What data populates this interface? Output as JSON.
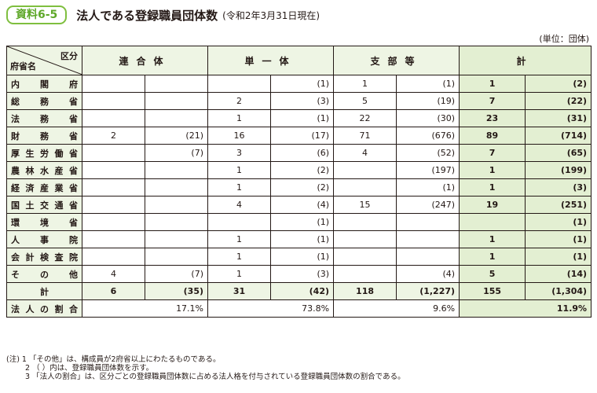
{
  "header": {
    "badge": "資料6-5",
    "title": "法人である登録職員団体数",
    "date": "(令和2年3月31日現在)",
    "unit": "(単位：団体)"
  },
  "table": {
    "corner_top": "区分",
    "corner_bottom": "府省名",
    "columns": [
      "連合体",
      "単一体",
      "支部等",
      "計"
    ],
    "rows": [
      {
        "name": "内閣府",
        "cells": [
          "",
          "",
          "",
          "(1)",
          "1",
          "(1)",
          "1",
          "(2)"
        ]
      },
      {
        "name": "総務省",
        "cells": [
          "",
          "",
          "2",
          "(3)",
          "5",
          "(19)",
          "7",
          "(22)"
        ]
      },
      {
        "name": "法務省",
        "cells": [
          "",
          "",
          "1",
          "(1)",
          "22",
          "(30)",
          "23",
          "(31)"
        ]
      },
      {
        "name": "財務省",
        "cells": [
          "2",
          "(21)",
          "16",
          "(17)",
          "71",
          "(676)",
          "89",
          "(714)"
        ]
      },
      {
        "name": "厚生労働省",
        "cells": [
          "",
          "(7)",
          "3",
          "(6)",
          "4",
          "(52)",
          "7",
          "(65)"
        ]
      },
      {
        "name": "農林水産省",
        "cells": [
          "",
          "",
          "1",
          "(2)",
          "",
          "(197)",
          "1",
          "(199)"
        ]
      },
      {
        "name": "経済産業省",
        "cells": [
          "",
          "",
          "1",
          "(2)",
          "",
          "(1)",
          "1",
          "(3)"
        ]
      },
      {
        "name": "国土交通省",
        "cells": [
          "",
          "",
          "4",
          "(4)",
          "15",
          "(247)",
          "19",
          "(251)"
        ]
      },
      {
        "name": "環境省",
        "cells": [
          "",
          "",
          "",
          "(1)",
          "",
          "",
          "",
          "(1)"
        ]
      },
      {
        "name": "人事院",
        "cells": [
          "",
          "",
          "1",
          "(1)",
          "",
          "",
          "1",
          "(1)"
        ]
      },
      {
        "name": "会計検査院",
        "cells": [
          "",
          "",
          "1",
          "(1)",
          "",
          "",
          "1",
          "(1)"
        ]
      },
      {
        "name": "その他",
        "cells": [
          "4",
          "(7)",
          "1",
          "(3)",
          "",
          "(4)",
          "5",
          "(14)"
        ]
      }
    ],
    "total": {
      "name": "計",
      "cells": [
        "6",
        "(35)",
        "31",
        "(42)",
        "118",
        "(1,227)",
        "155",
        "(1,304)"
      ]
    },
    "ratio": {
      "name": "法人の割合",
      "cells": [
        "17.1%",
        "73.8%",
        "9.6%",
        "11.9%"
      ]
    }
  },
  "notes": [
    "(注) 1 「その他」は、構成員が2府省以上にわたるものである。",
    "2 （ ）内は、登録職員団体数を示す。",
    "3 「法人の割合」は、区分ごとの登録職員団体数に占める法人格を付与されている登録職員団体数の割合である。"
  ]
}
